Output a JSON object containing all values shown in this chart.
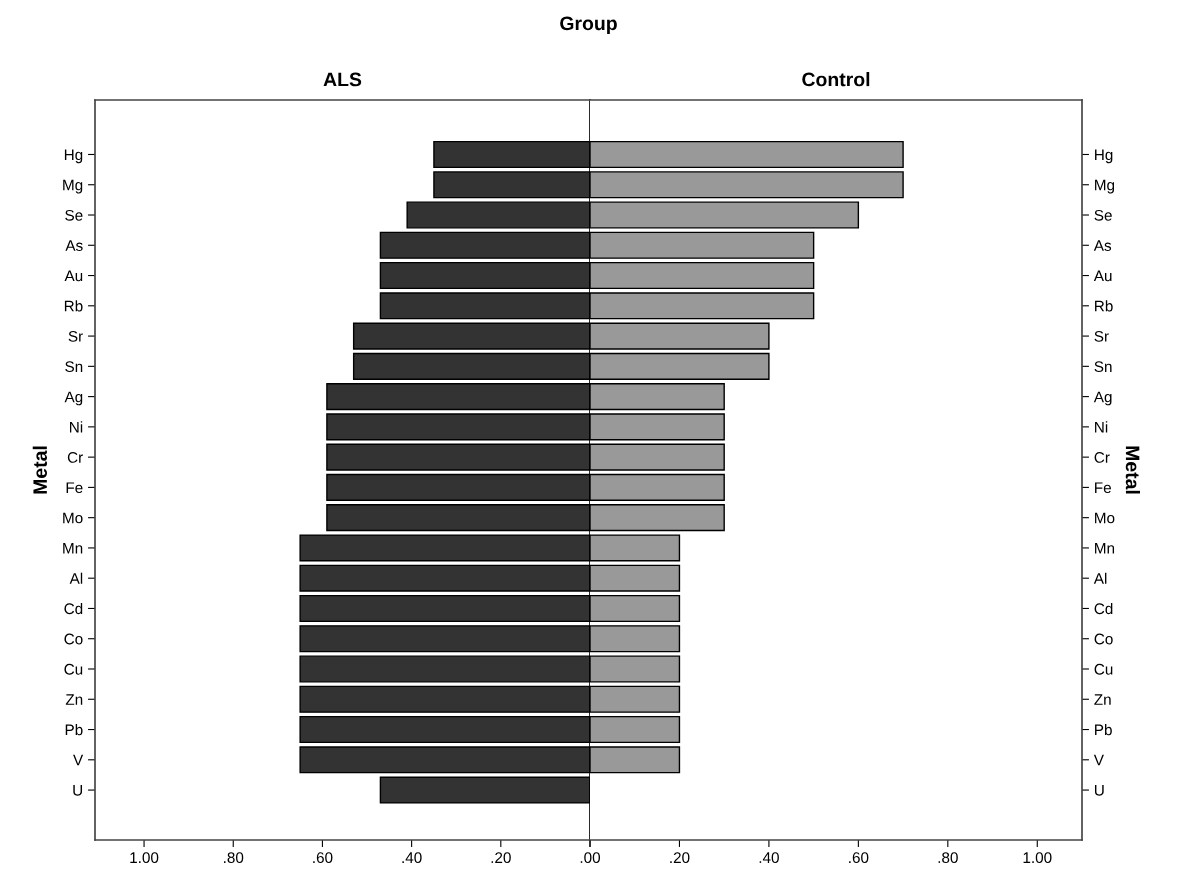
{
  "chart_data": [
    {
      "type": "bar",
      "orientation": "horizontal",
      "title": "ALS",
      "ylabel": "Metal",
      "annotations": [
        "Group"
      ],
      "categories": [
        "Hg",
        "Mg",
        "Se",
        "As",
        "Au",
        "Rb",
        "Sr",
        "Sn",
        "Ag",
        "Ni",
        "Cr",
        "Fe",
        "Mo",
        "Mn",
        "Al",
        "Cd",
        "Co",
        "Cu",
        "Zn",
        "Pb",
        "V",
        "U"
      ],
      "values": [
        0.35,
        0.35,
        0.41,
        0.47,
        0.47,
        0.47,
        0.53,
        0.53,
        0.59,
        0.59,
        0.59,
        0.59,
        0.59,
        0.65,
        0.65,
        0.65,
        0.65,
        0.65,
        0.65,
        0.65,
        0.65,
        0.47
      ],
      "color": "#333333",
      "xlim": [
        1.11,
        0
      ],
      "xticks": [
        {
          "value": 1,
          "label": "1.00"
        },
        {
          "value": 0.8,
          "label": ".80"
        },
        {
          "value": 0.6,
          "label": ".60"
        },
        {
          "value": 0.4,
          "label": ".40"
        },
        {
          "value": 0.2,
          "label": ".20"
        },
        {
          "value": 0,
          "label": ".00"
        }
      ],
      "grid": false,
      "legend": false
    },
    {
      "type": "bar",
      "orientation": "horizontal",
      "title": "Control",
      "ylabel": "Metal",
      "categories": [
        "Hg",
        "Mg",
        "Se",
        "As",
        "Au",
        "Rb",
        "Sr",
        "Sn",
        "Ag",
        "Ni",
        "Cr",
        "Fe",
        "Mo",
        "Mn",
        "Al",
        "Cd",
        "Co",
        "Cu",
        "Zn",
        "Pb",
        "V",
        "U"
      ],
      "values": [
        0.7,
        0.7,
        0.6,
        0.5,
        0.5,
        0.5,
        0.4,
        0.4,
        0.3,
        0.3,
        0.3,
        0.3,
        0.3,
        0.2,
        0.2,
        0.2,
        0.2,
        0.2,
        0.2,
        0.2,
        0.2,
        null
      ],
      "color": "#999999",
      "xlim": [
        0,
        1.1
      ],
      "xticks": [
        {
          "value": 0,
          "label": null
        },
        {
          "value": 0.2,
          "label": ".20"
        },
        {
          "value": 0.4,
          "label": ".40"
        },
        {
          "value": 0.6,
          "label": ".60"
        },
        {
          "value": 0.8,
          "label": ".80"
        },
        {
          "value": 1,
          "label": "1.00"
        }
      ],
      "grid": false,
      "legend": false
    }
  ]
}
